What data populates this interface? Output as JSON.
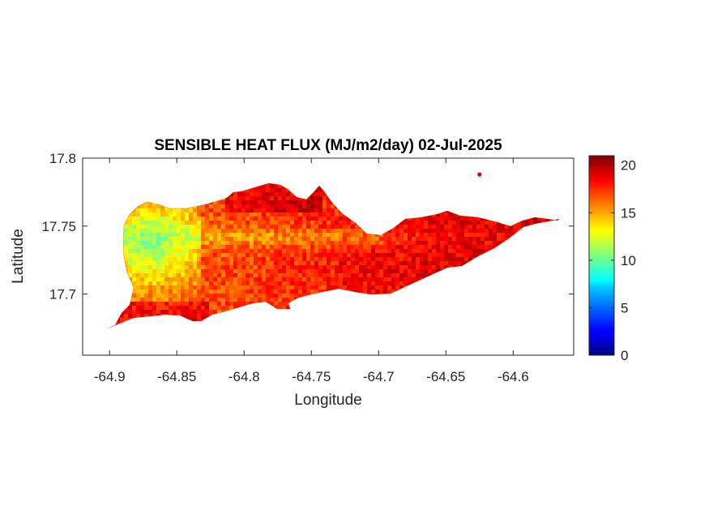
{
  "chart_data": {
    "type": "heatmap",
    "title": "SENSIBLE HEAT FLUX (MJ/m2/day) 02-Jul-2025",
    "xlabel": "Longitude",
    "ylabel": "Latitude",
    "xlim": [
      -64.92,
      -64.555
    ],
    "ylim": [
      17.655,
      17.8
    ],
    "x_ticks": [
      -64.9,
      -64.85,
      -64.8,
      -64.75,
      -64.7,
      -64.65,
      -64.6
    ],
    "x_tick_labels": [
      "-64.9",
      "-64.85",
      "-64.8",
      "-64.75",
      "-64.7",
      "-64.65",
      "-64.6"
    ],
    "y_ticks": [
      17.7,
      17.75,
      17.8
    ],
    "y_tick_labels": [
      "17.7",
      "17.75",
      "17.8"
    ],
    "colorbar": {
      "colormap": "jet",
      "clim": [
        0,
        21
      ],
      "ticks": [
        0,
        5,
        10,
        15,
        20
      ],
      "tick_labels": [
        "0",
        "5",
        "10",
        "15",
        "20"
      ]
    },
    "grid": false,
    "field": {
      "description_values": "west part ~11-15, center ~15-17, east/north ~18-20",
      "min_approx": 10,
      "max_approx": 20
    },
    "islet": {
      "lon": -64.625,
      "lat": 17.788,
      "value": 19
    }
  }
}
